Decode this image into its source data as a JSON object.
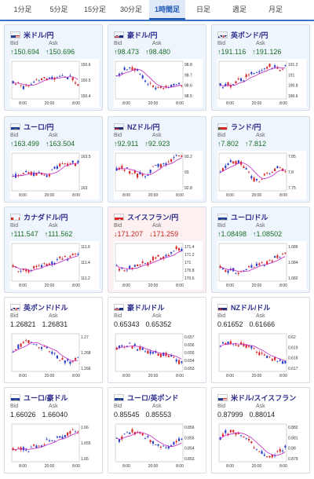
{
  "tabs": [
    {
      "label": "1分足",
      "active": false
    },
    {
      "label": "5分足",
      "active": false
    },
    {
      "label": "15分足",
      "active": false
    },
    {
      "label": "30分足",
      "active": false
    },
    {
      "label": "1時間足",
      "active": true
    },
    {
      "label": "日足",
      "active": false
    },
    {
      "label": "週足",
      "active": false
    },
    {
      "label": "月足",
      "active": false
    }
  ],
  "labels": {
    "bid": "Bid",
    "ask": "Ask"
  },
  "colors": {
    "up_bg": "#eef5fc",
    "down_bg": "#fcf0f0",
    "candle_up": "#d62828",
    "candle_down": "#2a3fc4",
    "ma": "#c424c4",
    "tab_accent": "#1f57b8"
  },
  "pairs": [
    {
      "name": "米ドル/円",
      "flag": "us",
      "trend": "up",
      "bid": "150.694",
      "ask": "150.696",
      "ticks": [
        "150.6",
        "150.5",
        "150.4"
      ],
      "xticks": [
        "8:00",
        "20:00",
        "8:00"
      ]
    },
    {
      "name": "豪ドル/円",
      "flag": "au",
      "trend": "up",
      "bid": "98.473",
      "ask": "98.480",
      "ticks": [
        "98.8",
        "98.7",
        "98.6",
        "98.5"
      ],
      "xticks": [
        "8:00",
        "20:00",
        "8:00"
      ]
    },
    {
      "name": "英ポンド/円",
      "flag": "gb",
      "trend": "up",
      "bid": "191.116",
      "ask": "191.126",
      "ticks": [
        "191.2",
        "191",
        "190.8",
        "190.6"
      ],
      "xticks": [
        "8:00",
        "20:00",
        "8:00"
      ]
    },
    {
      "name": "ユーロ/円",
      "flag": "eu",
      "trend": "up",
      "bid": "163.499",
      "ask": "163.504",
      "ticks": [
        "163.5",
        "163"
      ],
      "xticks": [
        "8:00",
        "20:00",
        "8:00"
      ]
    },
    {
      "name": "NZドル/円",
      "flag": "nz",
      "trend": "up",
      "bid": "92.911",
      "ask": "92.923",
      "ticks": [
        "93.2",
        "93",
        "92.8"
      ],
      "xticks": [
        "8:00",
        "20:00",
        "8:00"
      ]
    },
    {
      "name": "ランド/円",
      "flag": "za",
      "trend": "up",
      "bid": "7.802",
      "ask": "7.812",
      "ticks": [
        "7.85",
        "7.8",
        "7.75"
      ],
      "xticks": [
        "8:00",
        "20:00",
        "8:00"
      ]
    },
    {
      "name": "カナダドル/円",
      "flag": "ca",
      "trend": "up",
      "bid": "111.547",
      "ask": "111.562",
      "ticks": [
        "111.6",
        "111.4",
        "111.2"
      ],
      "xticks": [
        "8:00",
        "20:00",
        "8:00"
      ]
    },
    {
      "name": "スイスフラン/円",
      "flag": "ch",
      "trend": "down",
      "bid": "171.207",
      "ask": "171.259",
      "ticks": [
        "171.4",
        "171.2",
        "171",
        "170.8",
        "170.6"
      ],
      "xticks": [
        "8:00",
        "20:00",
        "8:00"
      ]
    },
    {
      "name": "ユーロ/ドル",
      "flag": "eu",
      "trend": "up",
      "bid": "1.08498",
      "ask": "1.08502",
      "ticks": [
        "1.086",
        "1.084",
        "1.082"
      ],
      "xticks": [
        "8:00",
        "20:00",
        "8:00"
      ]
    },
    {
      "name": "英ポンド/ドル",
      "flag": "gb",
      "trend": "neutral",
      "bid": "1.26821",
      "ask": "1.26831",
      "ticks": [
        "1.27",
        "1.268",
        "1.266"
      ],
      "xticks": [
        "8:00",
        "20:00",
        "8:00"
      ]
    },
    {
      "name": "豪ドル/ドル",
      "flag": "au",
      "trend": "neutral",
      "bid": "0.65343",
      "ask": "0.65352",
      "ticks": [
        "0.657",
        "0.656",
        "0.655",
        "0.654",
        "0.653"
      ],
      "xticks": [
        "8:00",
        "20:00",
        "8:00"
      ]
    },
    {
      "name": "NZドル/ドル",
      "flag": "nz",
      "trend": "neutral",
      "bid": "0.61652",
      "ask": "0.61666",
      "ticks": [
        "0.62",
        "0.619",
        "0.618",
        "0.617"
      ],
      "xticks": [
        "8:00",
        "20:00",
        "8:00"
      ]
    },
    {
      "name": "ユーロ/豪ドル",
      "flag": "eu",
      "trend": "neutral",
      "bid": "1.66026",
      "ask": "1.66040",
      "ticks": [
        "1.66",
        "1.655",
        "1.65"
      ],
      "xticks": [
        "8:00",
        "20:00",
        "8:00"
      ]
    },
    {
      "name": "ユーロ/英ポンド",
      "flag": "eu",
      "trend": "neutral",
      "bid": "0.85545",
      "ask": "0.85553",
      "ticks": [
        "0.856",
        "0.855",
        "0.854",
        "0.853"
      ],
      "xticks": [
        "8:00",
        "20:00",
        "8:00"
      ]
    },
    {
      "name": "米ドル/スイスフラン",
      "flag": "us",
      "trend": "neutral",
      "bid": "0.87999",
      "ask": "0.88014",
      "ticks": [
        "0.882",
        "0.881",
        "0.88",
        "0.879"
      ],
      "xticks": [
        "8:00",
        "20:00",
        "8:00"
      ]
    }
  ]
}
